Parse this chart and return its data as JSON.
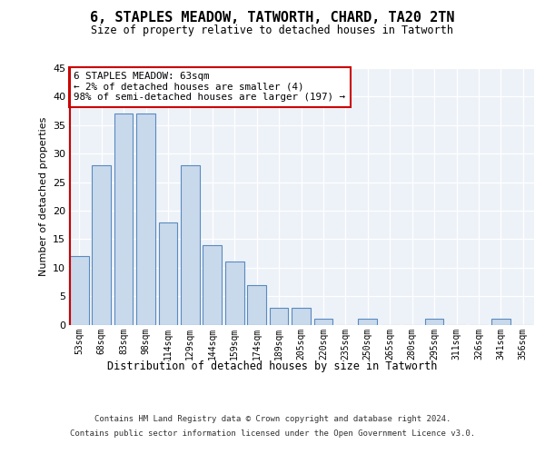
{
  "title": "6, STAPLES MEADOW, TATWORTH, CHARD, TA20 2TN",
  "subtitle": "Size of property relative to detached houses in Tatworth",
  "xlabel": "Distribution of detached houses by size in Tatworth",
  "ylabel": "Number of detached properties",
  "categories": [
    "53sqm",
    "68sqm",
    "83sqm",
    "98sqm",
    "114sqm",
    "129sqm",
    "144sqm",
    "159sqm",
    "174sqm",
    "189sqm",
    "205sqm",
    "220sqm",
    "235sqm",
    "250sqm",
    "265sqm",
    "280sqm",
    "295sqm",
    "311sqm",
    "326sqm",
    "341sqm",
    "356sqm"
  ],
  "values": [
    12,
    28,
    37,
    37,
    18,
    28,
    14,
    11,
    7,
    3,
    3,
    1,
    0,
    1,
    0,
    0,
    1,
    0,
    0,
    1,
    0
  ],
  "bar_color": "#c9d9ec",
  "bar_edge_color": "#5a8abf",
  "annotation_text_line1": "6 STAPLES MEADOW: 63sqm",
  "annotation_text_line2": "← 2% of detached houses are smaller (4)",
  "annotation_text_line3": "98% of semi-detached houses are larger (197) →",
  "annotation_box_color": "#ffffff",
  "annotation_box_edge_color": "#cc0000",
  "ylim": [
    0,
    45
  ],
  "yticks": [
    0,
    5,
    10,
    15,
    20,
    25,
    30,
    35,
    40,
    45
  ],
  "background_color": "#edf2f9",
  "footer_line1": "Contains HM Land Registry data © Crown copyright and database right 2024.",
  "footer_line2": "Contains public sector information licensed under the Open Government Licence v3.0."
}
